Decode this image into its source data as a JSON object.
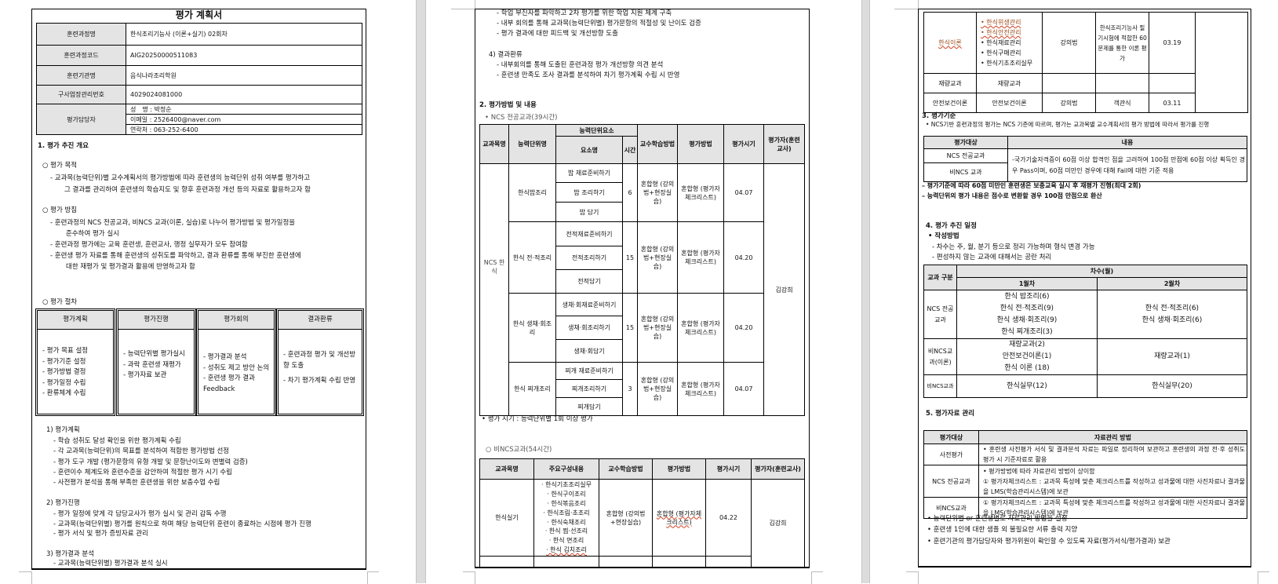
{
  "page1": {
    "title": "평가 계획서",
    "info": [
      {
        "label": "훈련과정명",
        "value": "한식조리기능사 (이론+실기) 02회차"
      },
      {
        "label": "훈련과정코드",
        "value": "AIG20250000511083"
      },
      {
        "label": "훈련기관명",
        "value": "음식나라조리학원"
      },
      {
        "label": "구사업장관리번호",
        "value": "4029024081000"
      }
    ],
    "manager": {
      "label": "평가담당자",
      "name": "성　명 : 박정순",
      "email": "이메일 : 2526400@naver.com",
      "phone": "연락처 : 063-252-6400"
    },
    "section1": "1. 평가 추진 개요",
    "purpose": {
      "heading": "○ 평가 목적",
      "lines": [
        "- 교과목(능력단위)별 교수계획서의 평가방법에 따라 훈련생의 능력단위 성취 여부를 평가하고",
        "그 결과를 관리하여 훈련생의 학습지도 및 향후 훈련과정 개선 등의 자료로 활용하고자 함"
      ]
    },
    "policy": {
      "heading": "○ 평가 방침",
      "lines": [
        "- 훈련과정의 NCS 전공교과, 비NCS 교과(이론, 실습)로 나누어 평가방법 및 평가일정을",
        "준수하여 평가 실시",
        "- 훈련과정 평가에는 교육 훈련생, 훈련교사, 행정 실무자가 모두 참여함",
        "- 훈련생 평가 자료를 통해 훈련생의 성취도를 파악하고, 결과 환류를 통해 부진한 훈련생에",
        "대한 재평가 및 평가결과 활용에 반영하고자 함"
      ]
    },
    "procedure": {
      "heading": "○ 평가 절차",
      "steps": [
        {
          "head": "평가계획",
          "items": [
            "- 평가 목표 설정",
            "- 평가기준 설정",
            "- 평가방법 결정",
            "- 평가일정 수립",
            "- 환류체계 수립"
          ]
        },
        {
          "head": "평가진행",
          "items": [
            "- 능력단위별 평가실시",
            "- 과락 훈련생 재평가",
            "- 평가자료 보관"
          ]
        },
        {
          "head": "평가회의",
          "items": [
            "- 평가결과 분석",
            "- 성취도 제고 방안 논의",
            "- 훈련생 평가 결과 Feedback"
          ]
        },
        {
          "head": "결과환류",
          "items": [
            "- 훈련과정 평가 및 개선방향 도출",
            "- 차기 평가계획 수립 반영"
          ]
        }
      ]
    },
    "plan": {
      "heading": "1) 평가계획",
      "lines": [
        "- 학습 성취도 달성 확인을 위한 평가계획 수립",
        "- 각 교과목(능력단위)의 목표를 분석하여 적합한 평가방법 선정",
        "- 평가 도구 개발 (평가문항의 유형 개발 및 문항난이도와 변별력 검증)",
        "- 훈련이수 체계도와 훈련수준을 감안하여 적절한 평가 시기 수립",
        "- 사전평가 분석을 통해 부족한 훈련생을 위한 보충수업 수립"
      ]
    },
    "progress": {
      "heading": "2) 평가진행",
      "lines": [
        "- 평가 일정에 맞게 각 담당교사가 평가 실시 및 관리 감독 수행",
        "- 교과목(능력단위별) 평가를 원칙으로 하며 해당 능력단위 훈련이 종료하는 시점에 평가 진행",
        "- 평가 서식 및 평가 증빙자료 관리"
      ]
    },
    "analysis": {
      "heading": "3) 평가결과 분석",
      "lines": [
        "- 교과목(능력단위별) 평가결과 분석 실시"
      ]
    }
  },
  "page2": {
    "cont_lines": [
      "- 학업 부진자를 파악하고 2차 평가를 위한 학업 지원 체계 구축",
      "- 내부 회의를 통해 교과목(능력단위별) 평가문항의 적절성 및 난이도 검증",
      "- 평가 결과에 대한 피드백 및 개선방향 도출"
    ],
    "feedback": {
      "heading": "4) 결과환류",
      "lines": [
        "- 내부회의를 통해 도출된 훈련과정 평가 개선방향 의견 분석",
        "- 훈련생 만족도 조사 결과를 분석하여 차기 평가계획 수립 시 반영"
      ]
    },
    "section2": "2. 평가방법 및 내용",
    "ncs_label": "• NCS 전공교과(39시간)",
    "ncs_headers": {
      "subject": "교과목명",
      "unit": "능력단위명",
      "elements": "능력단위요소",
      "element_name": "요소명",
      "hours": "시간",
      "teaching": "교수학습방법",
      "method": "평가방법",
      "date": "평가시기",
      "evaluator": "평가자(훈련교사)"
    },
    "ncs_subject": "NCS 한식",
    "ncs_evaluator": "김강희",
    "ncs_units": [
      {
        "name": "한식밥조리",
        "elements": [
          "밥 재료준비하기",
          "밥 조리하기",
          "밥 담기"
        ],
        "hours": "6",
        "teaching": "혼합형 (강의법+현장실습)",
        "method": "혼합형 (평가자체크리스트)",
        "date": "04.07"
      },
      {
        "name": "한식 전·적조리",
        "elements": [
          "전적재료준비하기",
          "전적조리하기",
          "전적담기"
        ],
        "hours": "15",
        "teaching": "혼합형 (강의법+현장실습)",
        "method": "혼합형 (평가자체크리스트)",
        "date": "04.20"
      },
      {
        "name": "한식 생채·회조리",
        "elements": [
          "생채·회재료준비하기",
          "생채·회조리하기",
          "생채·회담기"
        ],
        "hours": "15",
        "teaching": "혼합형 (강의법+현장실습)",
        "method": "혼합형 (평가자체크리스트)",
        "date": "04.20"
      },
      {
        "name": "한식 찌개조리",
        "elements": [
          "찌개 재료준비하기",
          "찌개조리하기",
          "찌개담기"
        ],
        "hours": "3",
        "teaching": "혼합형 (강의법+현장실습)",
        "method": "혼합형 (평가자체크리스트)",
        "date": "04.07"
      }
    ],
    "ncs_note": "• 평가 시기 : 능력단위별 1회 이상 평가",
    "non_ncs_label": "○ 비NCS교과(54시간)",
    "non_ncs_headers": {
      "subject": "교과목명",
      "content": "주요구성내용",
      "teaching": "교수학습방법",
      "method": "평가방법",
      "date": "평가시기",
      "evaluator": "평가자(훈련교사)"
    },
    "non_ncs_row": {
      "subject": "한식실기",
      "items": [
        "· 한식기초조리실무",
        "· 한식구이조리",
        "· 한식볶음조리",
        "· 한식조림·초조리",
        "· 한식숙채조리",
        "· 한식 찜·선조리",
        "· 한식 면조리",
        "· 한식 김치조리"
      ],
      "teaching": "혼합형 (강의법+현장실습)",
      "method": "혼합형 (평가자체크리스트)",
      "date": "04.22",
      "evaluator": "김강희"
    }
  },
  "page3": {
    "rows": [
      {
        "subject": "한식이론",
        "items": [
          "한식위생관리",
          "한식안전관리",
          "한식재료관리",
          "한식구매관리",
          "한식기초조리실무"
        ],
        "teaching": "강의법",
        "method": "한식조리기능사 필기시험에 적합한 60문제를 통한 이론 평가",
        "date": "03.19"
      },
      {
        "subject": "재량교과",
        "content": "재량교과"
      },
      {
        "subject": "안전보건이론",
        "content": "안전보건이론",
        "teaching": "강의법",
        "method": "객관식",
        "date": "03.11"
      }
    ],
    "section3": "3. 평가기준",
    "criteria_intro": "• NCS기반 훈련과정의 평가는 NCS 기준에 따르며, 평가는 교과목별 교수계획서의 평가 방법에 따라서 평가를 진행",
    "criteria_headers": {
      "target": "평가대상",
      "content": "내용"
    },
    "criteria_targets": [
      "NCS 전공교과",
      "비NCS 교과"
    ],
    "criteria_content": "-국가기술자격증이 60점 이상 합격인 점을 고려하여 100점 만점에 60점 이상 획득인 경우 Pass이며, 60점 미만인 경우에 대해 Fail에 대한 기준 적용",
    "criteria_notes": [
      "– 평가기준에 따라 60점 미만인 훈련생은 보충교육 실시 후 재평가 진행(최대 2회)",
      "– 능력단위의 평가 내용은 점수로 변환할 경우 100점 만점으로 환산"
    ],
    "section4": "4. 평가 추진 일정",
    "method_label": "• 작성방법",
    "method_lines": [
      "- 차수는 주, 월, 분기 등으로 정리 가능하며 형식 변경 가능",
      "- 편성하지 않는 교과에 대해서는 공란 처리"
    ],
    "schedule_headers": {
      "category": "교과 구분",
      "round": "차수(월)",
      "m1": "1월차",
      "m2": "2월차"
    },
    "schedule": [
      {
        "category": "NCS 전공교과",
        "m1": [
          "한식 밥조리(6)",
          "한식 전·적조리(9)",
          "한식 생채·회조리(9)",
          "한식 찌개조리(3)"
        ],
        "m2": [
          "한식 전·적조리(6)",
          "한식 생채·회조리(6)"
        ]
      },
      {
        "category": "비NCS교과(이론)",
        "m1": [
          "재량교과(2)",
          "안전보건이론(1)",
          "한식 이론 (18)"
        ],
        "m2": [
          "재량교과(1)"
        ]
      },
      {
        "category": "비NCS교과",
        "m1": [
          "한식실무(12)"
        ],
        "m2": [
          "한식실무(20)"
        ]
      }
    ],
    "section5": "5. 평가자료 관리",
    "data_headers": {
      "target": "평가대상",
      "method": "자료관리 방법"
    },
    "data_rows": [
      {
        "target": "사전평가",
        "lines": [
          "• 훈련생 사전평가 서식 및 결과분석 자료는 파일로 정리하여 보관하고 훈련생의 과정 전·후 성취도 평가 시 기준자료로 활용"
        ]
      },
      {
        "target": "NCS 전공교과",
        "lines": [
          "• 평가방법에 따라 자료관리 방법이 상이함",
          "① 평가자체크리스트 : 교과목 특성에 맞춘 체크리스트를 작성하고 성과물에 대한 사진자료나 결과물을 LMS(학습관리시스템)에 보관"
        ]
      },
      {
        "target": "비NCS교과",
        "lines": [
          "① 평가자체크리스트 : 교과목 특성에 맞춘 체크리스트를 작성하고 성과물에 대한 사진자료나 결과물을 LMS(학습관리시스템)에 보관"
        ]
      }
    ],
    "data_notes": [
      "• 능력단위별 or 훈련생별로 자료관리 방법을 설정",
      "• 훈련생 1인에 대한 샘플 외 불필요한 서류 출력 지양",
      "• 훈련기관의 평가담당자와 평가위원이 확인할 수 있도록 자료(평가서식/평가결과) 보관"
    ]
  },
  "colors": {
    "page_gap": "#dcdcdc",
    "header_fill": "#e4e4e4",
    "spell_underline": "#d04020",
    "accent_text": "#9a4a1a"
  }
}
